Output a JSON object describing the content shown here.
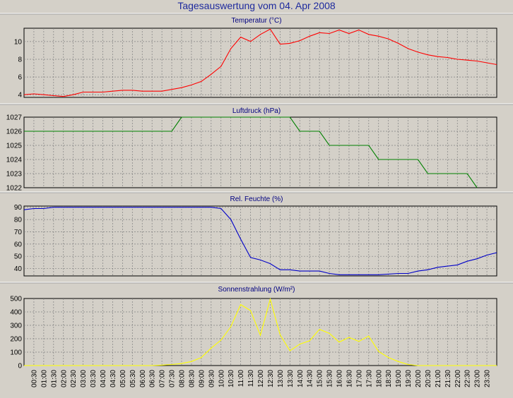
{
  "page": {
    "title": "Tagesauswertung vom 04. Apr 2008"
  },
  "colors": {
    "temperature": "#ff0000",
    "pressure": "#008000",
    "humidity": "#0000c8",
    "sun": "#ffff00",
    "grid": "#808080",
    "frame": "#000000"
  },
  "x_axis": {
    "tick_labels": [
      "00:30",
      "01:00",
      "01:30",
      "02:00",
      "02:30",
      "03:00",
      "03:30",
      "04:00",
      "04:30",
      "05:00",
      "05:30",
      "06:00",
      "06:30",
      "07:00",
      "07:30",
      "08:00",
      "08:30",
      "09:00",
      "09:30",
      "10:00",
      "10:30",
      "11:00",
      "11:30",
      "12:00",
      "12:30",
      "13:00",
      "13:30",
      "14:00",
      "14:30",
      "15:00",
      "15:30",
      "16:00",
      "16:30",
      "17:00",
      "17:30",
      "18:00",
      "18:30",
      "19:00",
      "19:30",
      "20:00",
      "20:30",
      "21:00",
      "21:30",
      "22:00",
      "22:30",
      "23:00",
      "23:30"
    ]
  },
  "chart_data": [
    {
      "type": "line",
      "title": "Temperatur (°C)",
      "ylim": [
        3.7,
        11.5
      ],
      "yticks": [
        4,
        6,
        8,
        10
      ],
      "grid": true,
      "series": [
        {
          "x": [
            "00:00",
            "00:30",
            "01:00",
            "01:30",
            "02:00",
            "02:30",
            "03:00",
            "03:30",
            "04:00",
            "04:30",
            "05:00",
            "05:30",
            "06:00",
            "06:30",
            "07:00",
            "07:30",
            "08:00",
            "08:30",
            "09:00",
            "09:30",
            "10:00",
            "10:30",
            "11:00",
            "11:30",
            "12:00",
            "12:30",
            "13:00",
            "13:30",
            "14:00",
            "14:30",
            "15:00",
            "15:30",
            "16:00",
            "16:30",
            "17:00",
            "17:30",
            "18:00",
            "18:30",
            "19:00",
            "19:30",
            "20:00",
            "20:30",
            "21:00",
            "21:30",
            "22:00",
            "22:30",
            "23:00",
            "23:30",
            "24:00"
          ],
          "values": [
            4.0,
            4.1,
            4.0,
            3.9,
            3.8,
            4.0,
            4.3,
            4.3,
            4.3,
            4.4,
            4.5,
            4.5,
            4.4,
            4.4,
            4.4,
            4.6,
            4.8,
            5.1,
            5.5,
            6.3,
            7.2,
            9.2,
            10.5,
            10.0,
            10.8,
            11.4,
            9.7,
            9.8,
            10.1,
            10.6,
            11.0,
            10.9,
            11.3,
            10.9,
            11.3,
            10.8,
            10.6,
            10.3,
            9.8,
            9.2,
            8.8,
            8.5,
            8.3,
            8.2,
            8.0,
            7.9,
            7.8,
            7.6,
            7.4
          ]
        }
      ]
    },
    {
      "type": "line",
      "title": "Luftdruck (hPa)",
      "ylim": [
        1022,
        1027
      ],
      "yticks": [
        1022,
        1023,
        1024,
        1025,
        1026,
        1027
      ],
      "grid": true,
      "series": [
        {
          "x": [
            "00:00",
            "07:30",
            "08:00",
            "13:30",
            "14:00",
            "15:00",
            "15:30",
            "17:30",
            "18:00",
            "20:00",
            "20:30",
            "22:30",
            "23:00"
          ],
          "values": [
            1026,
            1026,
            1027,
            1027,
            1026,
            1026,
            1025,
            1025,
            1024,
            1024,
            1023,
            1023,
            1022
          ]
        }
      ]
    },
    {
      "type": "line",
      "title": "Rel. Feuchte (%)",
      "ylim": [
        34,
        91
      ],
      "yticks": [
        40,
        50,
        60,
        70,
        80,
        90
      ],
      "grid": true,
      "series": [
        {
          "x": [
            "00:00",
            "00:30",
            "01:00",
            "01:30",
            "02:00",
            "08:00",
            "09:30",
            "10:00",
            "10:30",
            "11:00",
            "11:30",
            "12:00",
            "12:30",
            "13:00",
            "13:30",
            "14:00",
            "14:30",
            "15:00",
            "15:30",
            "16:00",
            "17:00",
            "18:00",
            "19:00",
            "19:30",
            "20:00",
            "20:30",
            "21:00",
            "21:30",
            "22:00",
            "22:30",
            "23:00",
            "23:30",
            "24:00"
          ],
          "values": [
            88,
            89,
            89,
            90,
            90,
            90,
            90,
            89,
            80,
            64,
            49,
            47,
            44,
            39,
            39,
            38,
            38,
            38,
            36,
            35,
            35,
            35,
            36,
            36,
            38,
            39,
            41,
            42,
            43,
            46,
            48,
            51,
            53
          ]
        }
      ]
    },
    {
      "type": "line",
      "title": "Sonnenstrahlung (W/m²)",
      "ylim": [
        0,
        500
      ],
      "yticks": [
        0,
        100,
        200,
        300,
        400,
        500
      ],
      "grid": true,
      "series": [
        {
          "x": [
            "00:00",
            "06:30",
            "07:00",
            "07:30",
            "08:00",
            "08:30",
            "09:00",
            "09:30",
            "10:00",
            "10:30",
            "11:00",
            "11:30",
            "12:00",
            "12:30",
            "13:00",
            "13:30",
            "14:00",
            "14:30",
            "15:00",
            "15:30",
            "16:00",
            "16:30",
            "17:00",
            "17:30",
            "18:00",
            "18:30",
            "19:00",
            "19:30",
            "20:00",
            "24:00"
          ],
          "values": [
            0,
            0,
            3,
            8,
            15,
            30,
            60,
            130,
            190,
            290,
            455,
            410,
            225,
            495,
            230,
            110,
            160,
            185,
            270,
            240,
            175,
            210,
            180,
            220,
            105,
            60,
            30,
            8,
            0,
            0
          ]
        }
      ]
    }
  ]
}
